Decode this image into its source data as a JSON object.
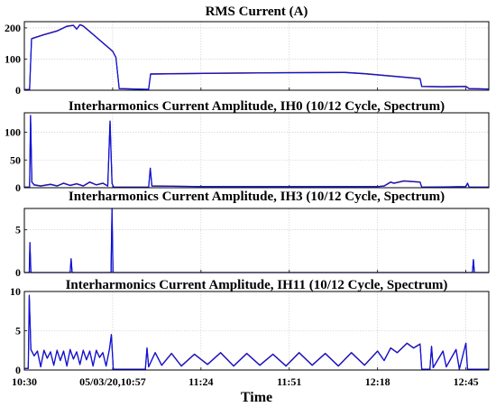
{
  "chart_data": {
    "shared_x": {
      "label": "Time",
      "tick_labels": [
        "10:30",
        "05/03/20,10:57",
        "11:24",
        "11:51",
        "12:18",
        "12:45"
      ],
      "tick_minutes": [
        0,
        27,
        54,
        81,
        108,
        135
      ],
      "range_minutes": [
        0,
        142
      ]
    },
    "series_colors": [
      "#e8a000",
      "#d62020",
      "#1f9b3a",
      "#1010e0"
    ],
    "panels": [
      {
        "type": "line",
        "title": "RMS Current (A)",
        "yticks": [
          0,
          100,
          200
        ],
        "ylim": [
          0,
          220
        ],
        "grid": true,
        "points": [
          [
            0,
            2
          ],
          [
            1.6,
            2
          ],
          [
            2.2,
            165
          ],
          [
            3,
            168
          ],
          [
            6,
            178
          ],
          [
            10,
            190
          ],
          [
            13,
            205
          ],
          [
            15,
            208
          ],
          [
            16,
            196
          ],
          [
            17,
            210
          ],
          [
            18,
            206
          ],
          [
            22,
            170
          ],
          [
            27,
            125
          ],
          [
            28,
            105
          ],
          [
            29,
            5
          ],
          [
            37,
            3
          ],
          [
            38,
            3
          ],
          [
            38.6,
            52
          ],
          [
            55,
            54
          ],
          [
            80,
            56
          ],
          [
            98,
            57
          ],
          [
            104,
            53
          ],
          [
            120,
            38
          ],
          [
            121,
            37
          ],
          [
            121.5,
            12
          ],
          [
            128,
            11
          ],
          [
            135,
            12
          ],
          [
            136,
            5
          ],
          [
            142,
            4
          ]
        ]
      },
      {
        "type": "line",
        "title": "Interharmonics Current Amplitude, IH0 (10/12 Cycle, Spectrum)",
        "yticks": [
          0,
          50,
          100
        ],
        "ylim": [
          0,
          135
        ],
        "grid": true,
        "points": [
          [
            0,
            1
          ],
          [
            1.6,
            1
          ],
          [
            1.9,
            130
          ],
          [
            2.3,
            10
          ],
          [
            3,
            5
          ],
          [
            5,
            3
          ],
          [
            8,
            6
          ],
          [
            10,
            3
          ],
          [
            12,
            8
          ],
          [
            14,
            4
          ],
          [
            16,
            7
          ],
          [
            18,
            3
          ],
          [
            20,
            10
          ],
          [
            22,
            5
          ],
          [
            24,
            8
          ],
          [
            25.5,
            3
          ],
          [
            26.2,
            120
          ],
          [
            26.8,
            8
          ],
          [
            27.3,
            1
          ],
          [
            38,
            1
          ],
          [
            38.5,
            35
          ],
          [
            39,
            3
          ],
          [
            55,
            2
          ],
          [
            80,
            2
          ],
          [
            108,
            2
          ],
          [
            110,
            3
          ],
          [
            112,
            10
          ],
          [
            113,
            8
          ],
          [
            116,
            12
          ],
          [
            121,
            10
          ],
          [
            121.5,
            1
          ],
          [
            135,
            2
          ],
          [
            135.5,
            8
          ],
          [
            136,
            1
          ],
          [
            142,
            1
          ]
        ]
      },
      {
        "type": "line",
        "title": "Interharmonics Current Amplitude, IH3 (10/12 Cycle, Spectrum)",
        "yticks": [
          0,
          5
        ],
        "ylim": [
          0,
          7.5
        ],
        "grid": true,
        "points": [
          [
            0,
            0
          ],
          [
            1.5,
            0
          ],
          [
            1.7,
            3.5
          ],
          [
            2,
            0
          ],
          [
            14,
            0
          ],
          [
            14.3,
            1.6
          ],
          [
            14.6,
            0
          ],
          [
            26.5,
            0
          ],
          [
            26.8,
            7.5
          ],
          [
            27.1,
            0
          ],
          [
            137,
            0
          ],
          [
            137.3,
            1.5
          ],
          [
            137.6,
            0
          ],
          [
            142,
            0
          ]
        ]
      },
      {
        "type": "line",
        "title": "Interharmonics Current Amplitude, IH11 (10/12 Cycle, Spectrum)",
        "yticks": [
          0,
          5,
          10
        ],
        "ylim": [
          0,
          10
        ],
        "grid": true,
        "points": [
          [
            0,
            0.2
          ],
          [
            1.2,
            0.2
          ],
          [
            1.5,
            9.5
          ],
          [
            2,
            2.6
          ],
          [
            3,
            1.8
          ],
          [
            4,
            2.4
          ],
          [
            5,
            0.4
          ],
          [
            6,
            2.5
          ],
          [
            7,
            1.5
          ],
          [
            8,
            2.3
          ],
          [
            9,
            0.6
          ],
          [
            10,
            2.5
          ],
          [
            11,
            1.2
          ],
          [
            12,
            2.4
          ],
          [
            13,
            0.5
          ],
          [
            14,
            2.6
          ],
          [
            15,
            1.4
          ],
          [
            16,
            2.3
          ],
          [
            17,
            0.7
          ],
          [
            18,
            2.5
          ],
          [
            19,
            1.3
          ],
          [
            20,
            2.4
          ],
          [
            21,
            0.5
          ],
          [
            22,
            2.5
          ],
          [
            23,
            1.6
          ],
          [
            24,
            2.2
          ],
          [
            25,
            0.5
          ],
          [
            26,
            2.6
          ],
          [
            26.6,
            4.5
          ],
          [
            27.2,
            0.1
          ],
          [
            37,
            0.1
          ],
          [
            37.5,
            2.8
          ],
          [
            38,
            0.4
          ],
          [
            40,
            2.2
          ],
          [
            42,
            0.6
          ],
          [
            45,
            2.1
          ],
          [
            48,
            0.5
          ],
          [
            52,
            2.0
          ],
          [
            56,
            0.7
          ],
          [
            60,
            2.2
          ],
          [
            64,
            0.5
          ],
          [
            68,
            2.1
          ],
          [
            72,
            0.6
          ],
          [
            76,
            2.0
          ],
          [
            80,
            0.5
          ],
          [
            84,
            2.2
          ],
          [
            88,
            0.6
          ],
          [
            92,
            2.1
          ],
          [
            96,
            0.5
          ],
          [
            100,
            2.2
          ],
          [
            104,
            0.6
          ],
          [
            108,
            2.4
          ],
          [
            110,
            1.2
          ],
          [
            112,
            2.8
          ],
          [
            114,
            2.2
          ],
          [
            117,
            3.4
          ],
          [
            119,
            2.8
          ],
          [
            121,
            3.3
          ],
          [
            121.5,
            0.1
          ],
          [
            124,
            0.1
          ],
          [
            124.5,
            3.0
          ],
          [
            125,
            0.3
          ],
          [
            128,
            2.4
          ],
          [
            129,
            0.4
          ],
          [
            132,
            2.6
          ],
          [
            133,
            0.1
          ],
          [
            135,
            3.4
          ],
          [
            135.5,
            0.1
          ],
          [
            142,
            0.1
          ]
        ]
      }
    ]
  }
}
